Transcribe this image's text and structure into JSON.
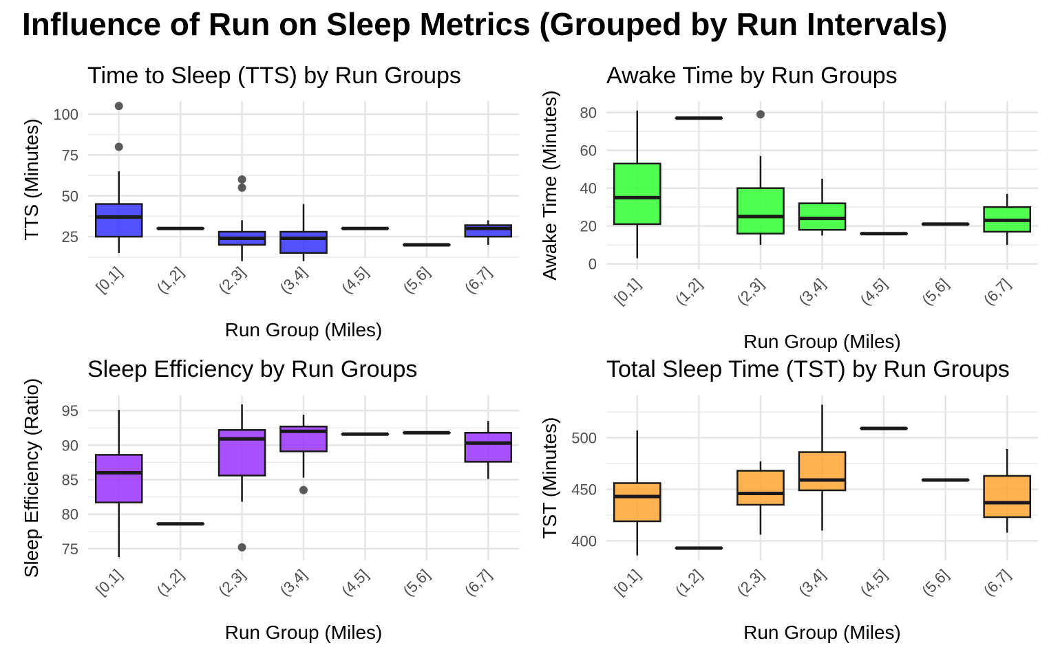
{
  "title": "Influence of Run on Sleep Metrics (Grouped by Run Intervals)",
  "chart_data": [
    {
      "type": "boxplot",
      "title": "Time to Sleep (TTS) by Run Groups",
      "xlabel": "Run Group (Miles)",
      "ylabel": "TTS (Minutes)",
      "fill": "#3333ff",
      "categories": [
        "[0,1]",
        "(1,2]",
        "(2,3]",
        "(3,4]",
        "(4,5]",
        "(5,6]",
        "(6,7]"
      ],
      "ylim": [
        12,
        108
      ],
      "yticks": [
        25,
        50,
        75,
        100
      ],
      "boxes": [
        {
          "min": 15,
          "q1": 25,
          "median": 37,
          "q3": 45,
          "max": 65,
          "outliers": [
            80,
            105
          ]
        },
        {
          "min": 30,
          "q1": 30,
          "median": 30,
          "q3": 30,
          "max": 30,
          "outliers": []
        },
        {
          "min": 10,
          "q1": 20,
          "median": 24,
          "q3": 28,
          "max": 35,
          "outliers": [
            55,
            60
          ]
        },
        {
          "min": 10,
          "q1": 15,
          "median": 24,
          "q3": 28,
          "max": 45,
          "outliers": []
        },
        {
          "min": 30,
          "q1": 30,
          "median": 30,
          "q3": 30,
          "max": 30,
          "outliers": []
        },
        {
          "min": 20,
          "q1": 20,
          "median": 20,
          "q3": 20,
          "max": 20,
          "outliers": []
        },
        {
          "min": 20,
          "q1": 25,
          "median": 30,
          "q3": 32,
          "max": 35,
          "outliers": []
        }
      ]
    },
    {
      "type": "boxplot",
      "title": "Awake Time by Run Groups",
      "xlabel": "Run Group (Miles)",
      "ylabel": "Awake Time (Minutes)",
      "fill": "#33ff33",
      "categories": [
        "[0,1]",
        "(1,2]",
        "(2,3]",
        "(3,4]",
        "(4,5]",
        "(5,6]",
        "(6,7]"
      ],
      "ylim": [
        -3,
        86
      ],
      "yticks": [
        0,
        20,
        40,
        60,
        80
      ],
      "boxes": [
        {
          "min": 3,
          "q1": 21,
          "median": 35,
          "q3": 53,
          "max": 81,
          "outliers": []
        },
        {
          "min": 77,
          "q1": 77,
          "median": 77,
          "q3": 77,
          "max": 77,
          "outliers": []
        },
        {
          "min": 10,
          "q1": 16,
          "median": 25,
          "q3": 40,
          "max": 57,
          "outliers": [
            79
          ]
        },
        {
          "min": 15,
          "q1": 18,
          "median": 24,
          "q3": 32,
          "max": 45,
          "outliers": []
        },
        {
          "min": 16,
          "q1": 16,
          "median": 16,
          "q3": 16,
          "max": 16,
          "outliers": []
        },
        {
          "min": 21,
          "q1": 21,
          "median": 21,
          "q3": 21,
          "max": 21,
          "outliers": []
        },
        {
          "min": 10,
          "q1": 17,
          "median": 23,
          "q3": 30,
          "max": 37,
          "outliers": []
        }
      ]
    },
    {
      "type": "boxplot",
      "title": "Sleep Efficiency by Run Groups",
      "xlabel": "Run Group (Miles)",
      "ylabel": "Sleep Efficiency (Ratio)",
      "fill": "#9933ff",
      "categories": [
        "[0,1]",
        "(1,2]",
        "(2,3]",
        "(3,4]",
        "(4,5]",
        "(5,6]",
        "(6,7]"
      ],
      "ylim": [
        73.3,
        97.2
      ],
      "yticks": [
        75,
        80,
        85,
        90,
        95
      ],
      "boxes": [
        {
          "min": 73.8,
          "q1": 81.7,
          "median": 86.0,
          "q3": 88.6,
          "max": 95.1,
          "outliers": []
        },
        {
          "min": 78.6,
          "q1": 78.6,
          "median": 78.6,
          "q3": 78.6,
          "max": 78.6,
          "outliers": []
        },
        {
          "min": 81.8,
          "q1": 85.6,
          "median": 90.9,
          "q3": 92.2,
          "max": 95.9,
          "outliers": [
            75.2
          ]
        },
        {
          "min": 85.3,
          "q1": 89.1,
          "median": 92.0,
          "q3": 92.7,
          "max": 94.4,
          "outliers": [
            83.5
          ]
        },
        {
          "min": 91.6,
          "q1": 91.6,
          "median": 91.6,
          "q3": 91.6,
          "max": 91.6,
          "outliers": []
        },
        {
          "min": 91.8,
          "q1": 91.8,
          "median": 91.8,
          "q3": 91.8,
          "max": 91.8,
          "outliers": []
        },
        {
          "min": 85.1,
          "q1": 87.6,
          "median": 90.3,
          "q3": 91.8,
          "max": 93.5,
          "outliers": []
        }
      ]
    },
    {
      "type": "boxplot",
      "title": "Total Sleep Time (TST) by Run Groups",
      "xlabel": "Run Group (Miles)",
      "ylabel": "TST (Minutes)",
      "fill": "#ffa533",
      "categories": [
        "[0,1]",
        "(1,2]",
        "(2,3]",
        "(3,4]",
        "(4,5]",
        "(5,6]",
        "(6,7]"
      ],
      "ylim": [
        381,
        541
      ],
      "yticks": [
        400,
        450,
        500
      ],
      "boxes": [
        {
          "min": 386,
          "q1": 419,
          "median": 443,
          "q3": 456,
          "max": 507,
          "outliers": []
        },
        {
          "min": 393,
          "q1": 393,
          "median": 393,
          "q3": 393,
          "max": 393,
          "outliers": []
        },
        {
          "min": 406,
          "q1": 435,
          "median": 446,
          "q3": 468,
          "max": 477,
          "outliers": []
        },
        {
          "min": 410,
          "q1": 449,
          "median": 459,
          "q3": 486,
          "max": 532,
          "outliers": []
        },
        {
          "min": 509,
          "q1": 509,
          "median": 509,
          "q3": 509,
          "max": 509,
          "outliers": []
        },
        {
          "min": 459,
          "q1": 459,
          "median": 459,
          "q3": 459,
          "max": 459,
          "outliers": []
        },
        {
          "min": 408,
          "q1": 423,
          "median": 437,
          "q3": 463,
          "max": 489,
          "outliers": []
        }
      ]
    }
  ]
}
